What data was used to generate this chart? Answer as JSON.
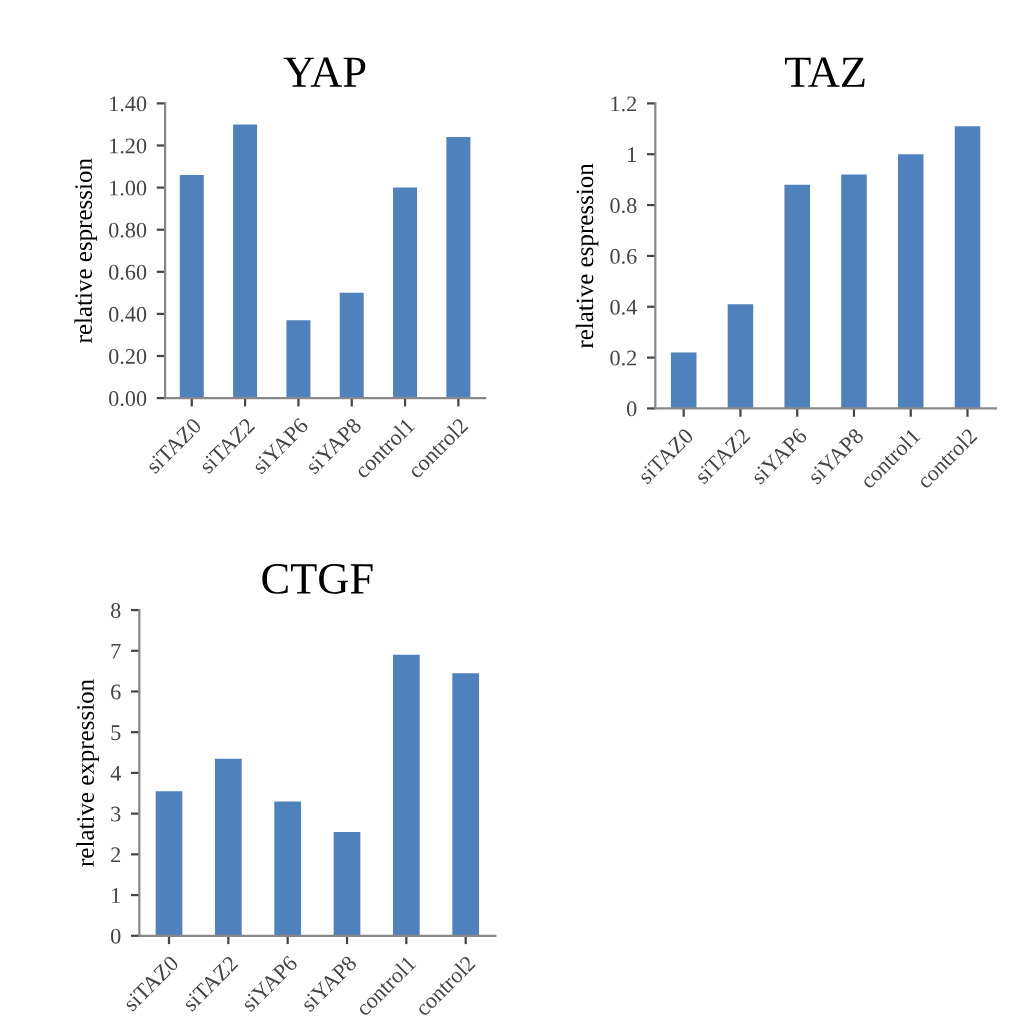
{
  "chart_data": [
    {
      "type": "bar",
      "title": "YAP",
      "ylabel": "relative espression",
      "categories": [
        "siTAZ0",
        "siTAZ2",
        "siYAP6",
        "siYAP8",
        "control1",
        "control2"
      ],
      "values": [
        1.06,
        1.3,
        0.37,
        0.5,
        1.0,
        1.24
      ],
      "color": "#4f81bd",
      "ylim": [
        0,
        1.4
      ],
      "yticks": [
        {
          "value": 0,
          "label": "0.00"
        },
        {
          "value": 0.2,
          "label": "0.20"
        },
        {
          "value": 0.4,
          "label": "0.40"
        },
        {
          "value": 0.6,
          "label": "0.60"
        },
        {
          "value": 0.8,
          "label": "0.80"
        },
        {
          "value": 1.0,
          "label": "1.00"
        },
        {
          "value": 1.2,
          "label": "1.20"
        },
        {
          "value": 1.4,
          "label": "1.40"
        }
      ],
      "grid": false,
      "legend": false
    },
    {
      "type": "bar",
      "title": "TAZ",
      "ylabel": "relative espression",
      "categories": [
        "siTAZ0",
        "siTAZ2",
        "siYAP6",
        "siYAP8",
        "control1",
        "control2"
      ],
      "values": [
        0.22,
        0.41,
        0.88,
        0.92,
        1.0,
        1.11
      ],
      "color": "#4f81bd",
      "ylim": [
        0,
        1.2
      ],
      "yticks": [
        0,
        0.2,
        0.4,
        0.6,
        0.8,
        1,
        1.2
      ],
      "grid": false,
      "legend": false
    },
    {
      "type": "bar",
      "title": "CTGF",
      "ylabel": "relative expression",
      "categories": [
        "siTAZ0",
        "siTAZ2",
        "siYAP6",
        "siYAP8",
        "control1",
        "control2"
      ],
      "values": [
        3.55,
        4.35,
        3.3,
        2.55,
        6.9,
        6.45
      ],
      "color": "#4f81bd",
      "ylim": [
        0,
        8
      ],
      "yticks": [
        0,
        1,
        2,
        3,
        4,
        5,
        6,
        7,
        8
      ],
      "grid": false,
      "legend": false
    }
  ]
}
